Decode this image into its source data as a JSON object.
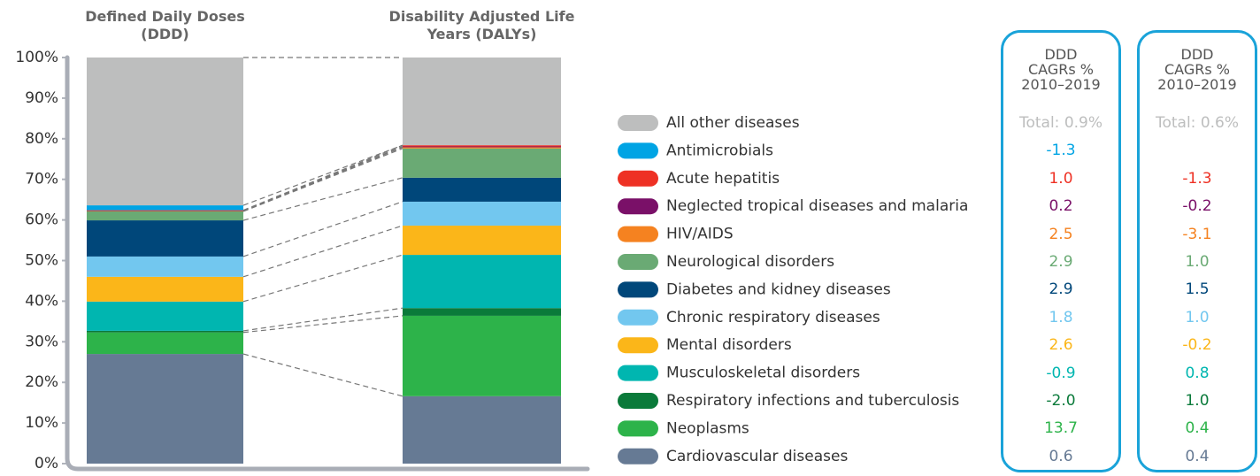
{
  "chart_data": {
    "type": "stacked_bar",
    "categories": [
      "Defined Daily Doses (DDD)",
      "Disability Adjusted Life Years (DALYs)"
    ],
    "ylim": [
      0,
      100
    ],
    "yticks": [
      {
        "value": 0,
        "label": "0%"
      },
      {
        "value": 10,
        "label": "10%"
      },
      {
        "value": 20,
        "label": "20%"
      },
      {
        "value": 30,
        "label": "30%"
      },
      {
        "value": 40,
        "label": "40%"
      },
      {
        "value": 50,
        "label": "50%"
      },
      {
        "value": 60,
        "label": "60%"
      },
      {
        "value": 70,
        "label": "70%"
      },
      {
        "value": 80,
        "label": "80%"
      },
      {
        "value": 90,
        "label": "90%"
      },
      {
        "value": 100,
        "label": "100%"
      }
    ],
    "series": [
      {
        "name": "Cardiovascular diseases",
        "color": "#667a94",
        "values": [
          27,
          16.6
        ]
      },
      {
        "name": "Neoplasms",
        "color": "#2db34a",
        "values": [
          5.3,
          19.8
        ]
      },
      {
        "name": "Respiratory infections and tuberculosis",
        "color": "#0a7a3a",
        "values": [
          0.4,
          1.9
        ]
      },
      {
        "name": "Musculoskeletal disorders",
        "color": "#00b6b0",
        "values": [
          7.2,
          13.1
        ]
      },
      {
        "name": "Mental disorders",
        "color": "#fbb619",
        "values": [
          6.1,
          7.2
        ]
      },
      {
        "name": "Chronic respiratory diseases",
        "color": "#72c7ef",
        "values": [
          5,
          5.9
        ]
      },
      {
        "name": "Diabetes and kidney diseases",
        "color": "#00477a",
        "values": [
          8.9,
          5.9
        ]
      },
      {
        "name": "Neurological disorders",
        "color": "#6aaa74",
        "values": [
          2.2,
          7.2
        ]
      },
      {
        "name": "HIV/AIDS",
        "color": "#f58220",
        "values": [
          0.1,
          0.3
        ]
      },
      {
        "name": "Neglected tropical diseases and malaria",
        "color": "#7a1068",
        "values": [
          0.1,
          0.2
        ]
      },
      {
        "name": "Acute hepatitis",
        "color": "#ee3124",
        "values": [
          0.1,
          0.3
        ]
      },
      {
        "name": "Antimicrobials",
        "color": "#00a4e4",
        "values": [
          1.2,
          0
        ]
      },
      {
        "name": "All other diseases",
        "color": "#bdbebe",
        "values": [
          36.4,
          21.6
        ]
      }
    ]
  },
  "cagr_tables": [
    {
      "header": "DDD CAGRs % 2010–2019",
      "values": [
        "Total: 0.9%",
        "-1.3",
        "1.0",
        "0.2",
        "2.5",
        "2.9",
        "2.9",
        "1.8",
        "2.6",
        "-0.9",
        "-2.0",
        "13.7",
        "0.6"
      ]
    },
    {
      "header": "DDD CAGRs % 2010–2019",
      "values": [
        "Total: 0.6%",
        null,
        "-1.3",
        "-0.2",
        "-3.1",
        "1.0",
        "1.5",
        "1.0",
        "-0.2",
        "0.8",
        "1.0",
        "0.4",
        "0.4"
      ]
    }
  ]
}
